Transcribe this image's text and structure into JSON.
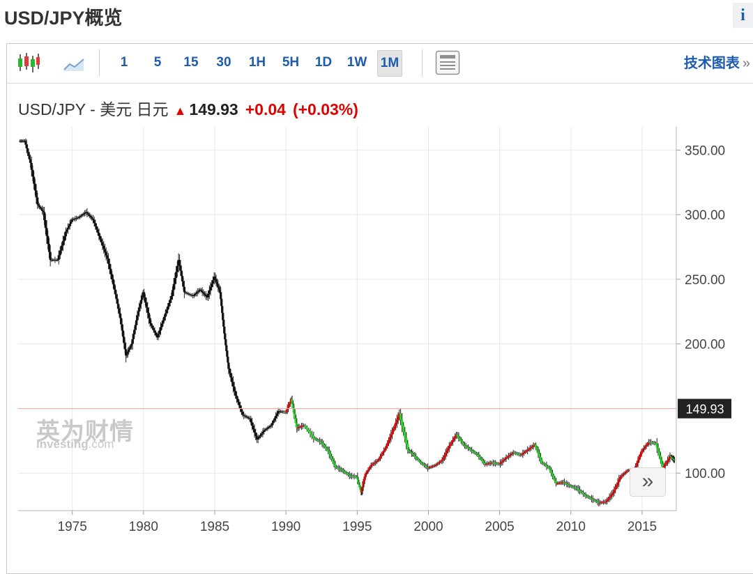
{
  "page": {
    "title": "USD/JPY概览",
    "info_label": "i"
  },
  "toolbar": {
    "timeframes": [
      "1",
      "5",
      "15",
      "30",
      "1H",
      "5H",
      "1D",
      "1W",
      "1M"
    ],
    "active": "1M",
    "tech_link": "技术图表",
    "tech_link_arrow": "»",
    "icons": [
      "candlestick-icon",
      "line-chart-icon",
      "table-view-icon"
    ]
  },
  "quote": {
    "pair": "USD/JPY - 美元 日元",
    "price": "149.93",
    "change": "+0.04",
    "change_pct": "(+0.03%)",
    "direction_icon": "up-arrow-icon",
    "up_color": "#e00000"
  },
  "watermark": {
    "brand_cn": "英为财情",
    "brand_en": "Investing",
    "brand_suffix": ".com"
  },
  "colors": {
    "up": "#ff0000",
    "down": "#22dd22",
    "early": "#111111",
    "current_line": "#f4a8a8",
    "price_tag_bg": "#222222"
  },
  "chart_data": {
    "type": "candlestick",
    "title": "",
    "xlabel": "",
    "ylabel": "",
    "current_price_label": "149.93",
    "current_price": 149.93,
    "x_ticks": [
      "1975",
      "1980",
      "1985",
      "1990",
      "1995",
      "2000",
      "2005",
      "2010",
      "2015"
    ],
    "y_ticks": [
      "350.00",
      "300.00",
      "250.00",
      "200.00",
      "100.00"
    ],
    "xlim": [
      1971.2,
      2017.4
    ],
    "ylim": [
      71,
      368
    ],
    "series": [
      {
        "name": "",
        "x": [
          1971.3,
          1971.7,
          1972.1,
          1972.6,
          1973.0,
          1973.5,
          1974.0,
          1974.6,
          1975.0,
          1975.5,
          1976.0,
          1976.5,
          1977.0,
          1977.5,
          1978.0,
          1978.4,
          1978.8,
          1979.2,
          1979.6,
          1980.0,
          1980.5,
          1981.0,
          1981.5,
          1982.0,
          1982.5,
          1982.9,
          1983.5,
          1984.0,
          1984.5,
          1985.0,
          1985.4,
          1985.7,
          1986.0,
          1986.5,
          1987.0,
          1987.5,
          1988.0,
          1988.5,
          1989.0,
          1989.5,
          1990.0,
          1990.4,
          1990.8,
          1991.3,
          1992.0,
          1992.5,
          1993.0,
          1993.5,
          1994.0,
          1994.5,
          1995.0,
          1995.3,
          1995.6,
          1996.0,
          1996.5,
          1997.0,
          1997.5,
          1998.0,
          1998.6,
          1999.0,
          1999.5,
          2000.0,
          2000.5,
          2001.0,
          2001.5,
          2002.0,
          2002.5,
          2003.0,
          2003.5,
          2004.0,
          2004.5,
          2005.0,
          2005.5,
          2006.0,
          2006.5,
          2007.0,
          2007.5,
          2008.0,
          2008.5,
          2009.0,
          2009.5,
          2010.0,
          2010.5,
          2011.0,
          2011.5,
          2012.0,
          2012.5,
          2013.0,
          2013.5,
          2014.0,
          2014.5,
          2015.0,
          2015.5,
          2016.0,
          2016.5,
          2017.0,
          2017.3
        ],
        "close": [
          357,
          357,
          340,
          308,
          302,
          265,
          265,
          287,
          296,
          298,
          302,
          296,
          281,
          266,
          242,
          220,
          191,
          200,
          222,
          240,
          216,
          205,
          221,
          237,
          265,
          240,
          237,
          242,
          236,
          252,
          240,
          208,
          181,
          160,
          145,
          142,
          126,
          133,
          137,
          148,
          147,
          157,
          135,
          137,
          127,
          124,
          117,
          105,
          102,
          98,
          97,
          85,
          99,
          106,
          110,
          119,
          132,
          146,
          118,
          114,
          108,
          104,
          106,
          110,
          121,
          130,
          122,
          118,
          114,
          107,
          108,
          107,
          112,
          116,
          114,
          118,
          122,
          108,
          104,
          92,
          93,
          90,
          88,
          83,
          80,
          77,
          78,
          85,
          97,
          102,
          103,
          117,
          124,
          123,
          104,
          113,
          110
        ]
      }
    ]
  }
}
